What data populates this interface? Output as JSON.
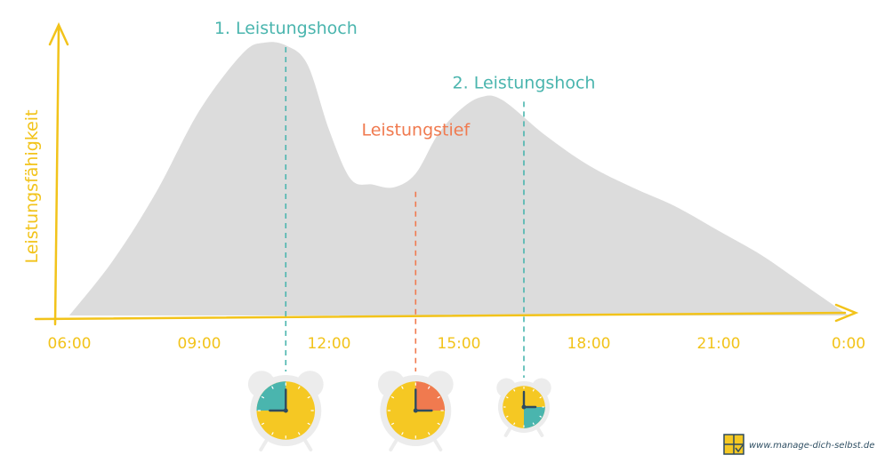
{
  "chart_data": {
    "type": "area",
    "title": "",
    "xlabel": "",
    "ylabel": "Leistungsfähigkeit",
    "x_ticks": [
      "06:00",
      "09:00",
      "12:00",
      "15:00",
      "18:00",
      "21:00",
      "0:00"
    ],
    "x_hours": [
      6,
      7,
      8,
      9,
      10,
      10.5,
      11,
      11.5,
      12,
      12.5,
      13,
      13.5,
      14,
      14.5,
      15,
      15.5,
      16,
      17,
      18,
      19,
      20,
      21,
      22,
      23,
      24
    ],
    "y_values": [
      0,
      20,
      45,
      75,
      96,
      100,
      99,
      92,
      68,
      50,
      48,
      47,
      52,
      66,
      75,
      80,
      79,
      66,
      55,
      47,
      40,
      31,
      22,
      11,
      0
    ],
    "ylim": [
      0,
      105
    ],
    "annotations": [
      {
        "text": "1. Leistungshoch",
        "hour": 11,
        "value": 100,
        "color": "#4ab5ae"
      },
      {
        "text": "Leistungstief",
        "hour": 14,
        "value": 47,
        "color": "#f07a4f"
      },
      {
        "text": "2. Leistungshoch",
        "hour": 16.5,
        "value": 80,
        "color": "#4ab5ae"
      }
    ],
    "colors": {
      "area": "#dcdcdc",
      "axis": "#f2c31a",
      "clock_face": "#f5c823",
      "clock_rim": "#ececec",
      "hand": "#2e4b5f"
    }
  },
  "brand": {
    "url": "www.manage-dich-selbst.de"
  }
}
